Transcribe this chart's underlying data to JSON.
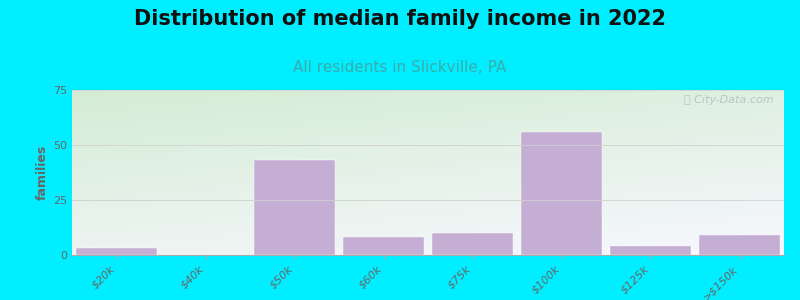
{
  "title": "Distribution of median family income in 2022",
  "subtitle": "All residents in Slickville, PA",
  "ylabel": "families",
  "categories": [
    "$20k",
    "$40k",
    "$50k",
    "$60k",
    "$75k",
    "$100k",
    "$125k",
    ">$150k"
  ],
  "values": [
    3,
    0,
    43,
    8,
    10,
    56,
    4,
    9
  ],
  "bar_color": "#c4aed4",
  "ylim": [
    0,
    75
  ],
  "yticks": [
    0,
    25,
    50,
    75
  ],
  "background_outer": "#00eeff",
  "plot_bg_color_top_left": "#d4ecd4",
  "plot_bg_color_bottom_right": "#f0f0f8",
  "title_fontsize": 15,
  "subtitle_fontsize": 11,
  "subtitle_color": "#3aacac",
  "title_color": "#111111",
  "ylabel_fontsize": 9,
  "tick_fontsize": 8,
  "watermark_text": "ⓘ City-Data.com",
  "watermark_color": "#b0bec5",
  "grid_color": "#d0d0d0",
  "tick_label_color": "#666666"
}
